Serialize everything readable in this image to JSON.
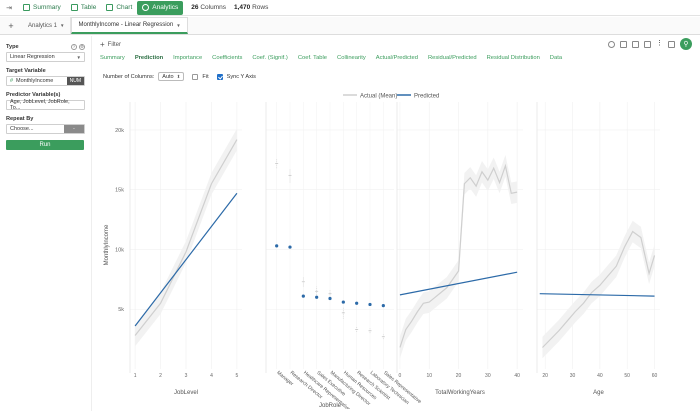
{
  "topbar": {
    "nav": [
      {
        "label": "Summary",
        "icon": "summary-icon"
      },
      {
        "label": "Table",
        "icon": "table-icon"
      },
      {
        "label": "Chart",
        "icon": "chart-icon"
      },
      {
        "label": "Analytics",
        "icon": "analytics-icon"
      }
    ],
    "columns_count": "26",
    "columns_label": "Columns",
    "rows_count": "1,470",
    "rows_label": "Rows"
  },
  "tabs": [
    {
      "label": "Analytics 1"
    },
    {
      "label": "MonthlyIncome - Linear Regression"
    }
  ],
  "sidebar": {
    "type_label": "Type",
    "type_value": "Linear Regression",
    "target_label": "Target Variable",
    "target_symbol": "#",
    "target_value": "MonthlyIncome",
    "target_type": "NUM",
    "predictor_label": "Predictor Variable(s)",
    "predictor_value": "Age, JobLevel, JobRole, To...",
    "repeat_label": "Repeat By",
    "repeat_value": "Choose...",
    "repeat_button": "-",
    "run_label": "Run"
  },
  "filter": {
    "label": "Filter"
  },
  "view_tabs": [
    "Summary",
    "Prediction",
    "Importance",
    "Coefficients",
    "Coef. (Signif.)",
    "Coef. Table",
    "Collinearity",
    "Actual/Predicted",
    "Residual/Predicted",
    "Residual Distribution",
    "Data"
  ],
  "options": {
    "columns_label": "Number of Columns:",
    "columns_value": "Auto",
    "fit_label": "Fit",
    "fit_checked": false,
    "sync_label": "Sync Y Axis",
    "sync_checked": true
  },
  "colors": {
    "accent": "#3b9d5d",
    "actual": "#cfcfcf",
    "predicted": "#2c6aa8"
  },
  "chart_data": {
    "type": "line",
    "legend": [
      {
        "name": "Actual (Mean)",
        "color": "#cfcfcf"
      },
      {
        "name": "Predicted",
        "color": "#2c6aa8"
      }
    ],
    "legend_position": "top",
    "ylabel": "MonthlyIncome",
    "ylim": [
      0,
      21000
    ],
    "y_ticks": [
      5000,
      10000,
      15000,
      20000
    ],
    "y_tick_labels": [
      "5k",
      "10k",
      "15k",
      "20k"
    ],
    "panels": [
      {
        "xlabel": "JobLevel",
        "xlim": [
          0.8,
          5.2
        ],
        "x_ticks": [
          1,
          2,
          3,
          4,
          5
        ],
        "series": [
          {
            "name": "Actual (Mean)",
            "x": [
              1,
              2,
              3,
              4,
              5
            ],
            "y": [
              2800,
              5500,
              9800,
              15500,
              19200
            ]
          },
          {
            "name": "Predicted",
            "x": [
              1,
              5
            ],
            "y": [
              3600,
              14700
            ]
          }
        ]
      },
      {
        "xlabel": "JobRole",
        "categorical": true,
        "categories": [
          "Manager",
          "Research Director",
          "Healthcare Representative",
          "Sales Executive",
          "Manufacturing Director",
          "Human Resources",
          "Research Scientist",
          "Laboratory Technician",
          "Sales Representative"
        ],
        "predicted": [
          10300,
          10200,
          6100,
          6000,
          5900,
          5600,
          5500,
          5400,
          5300
        ],
        "actual_mean": [
          17200,
          16200,
          7300,
          6500,
          6300,
          4700,
          3300,
          3200,
          2700
        ],
        "actual_range": [
          [
            16800,
            17600
          ],
          [
            15600,
            16700
          ],
          [
            6900,
            7700
          ],
          [
            6200,
            6900
          ],
          [
            6000,
            6600
          ],
          [
            4200,
            5200
          ],
          [
            3100,
            3600
          ],
          [
            3000,
            3400
          ],
          [
            2500,
            2900
          ]
        ]
      },
      {
        "xlabel": "TotalWorkingYears",
        "xlim": [
          -1,
          42
        ],
        "x_ticks": [
          0,
          10,
          20,
          30,
          40
        ],
        "series": [
          {
            "name": "Actual (Mean)",
            "x": [
              0,
              2,
              4,
              6,
              8,
              10,
              12,
              14,
              16,
              18,
              20,
              22,
              24,
              26,
              28,
              30,
              32,
              34,
              36,
              38,
              40
            ],
            "y": [
              1800,
              3300,
              4000,
              4800,
              5500,
              5600,
              6000,
              6400,
              6800,
              7500,
              8200,
              15500,
              16000,
              15300,
              16500,
              15800,
              16800,
              15600,
              17000,
              14700,
              14800
            ]
          },
          {
            "name": "Predicted",
            "x": [
              0,
              40
            ],
            "y": [
              6200,
              8100
            ]
          }
        ]
      },
      {
        "xlabel": "Age",
        "xlim": [
          17,
          62
        ],
        "x_ticks": [
          20,
          30,
          40,
          50,
          60
        ],
        "series": [
          {
            "name": "Actual (Mean)",
            "x": [
              19,
              22,
              25,
              28,
              31,
              34,
              37,
              40,
              43,
              46,
              49,
              52,
              55,
              58,
              60
            ],
            "y": [
              1800,
              2500,
              3200,
              4000,
              4800,
              5500,
              6400,
              7000,
              7800,
              8600,
              10200,
              11500,
              11000,
              8000,
              9500
            ]
          },
          {
            "name": "Predicted",
            "x": [
              18,
              60
            ],
            "y": [
              6300,
              6100
            ]
          }
        ]
      }
    ]
  }
}
